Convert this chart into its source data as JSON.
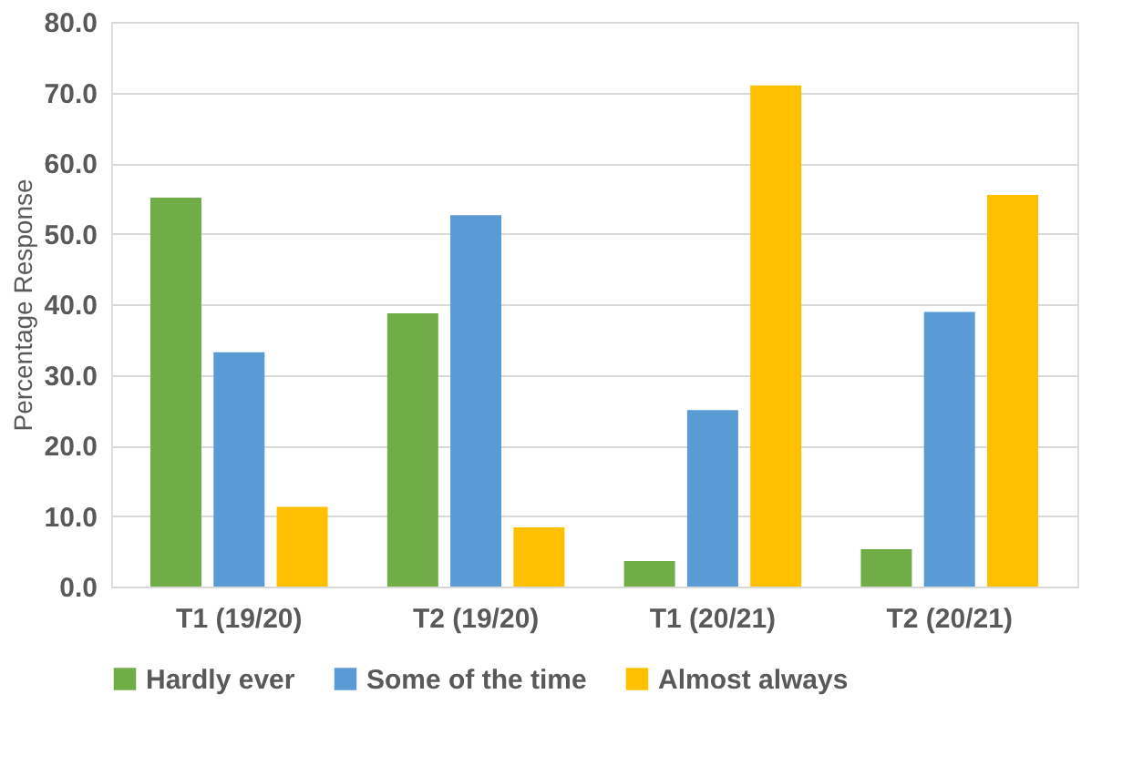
{
  "chart_data": {
    "type": "bar",
    "ylabel": "Percentage Response",
    "categories": [
      "T1 (19/20)",
      "T2 (19/20)",
      "T1 (20/21)",
      "T2 (20/21)"
    ],
    "series": [
      {
        "name": "Hardly ever",
        "color": "#70ad47",
        "values": [
          55.1,
          38.7,
          3.6,
          5.3
        ]
      },
      {
        "name": "Some of the time",
        "color": "#5b9bd5",
        "values": [
          33.2,
          52.6,
          25.0,
          38.9
        ]
      },
      {
        "name": "Almost always",
        "color": "#ffc000",
        "values": [
          11.3,
          8.4,
          71.0,
          55.5
        ]
      }
    ],
    "ylim": [
      0,
      80
    ],
    "yticks": [
      {
        "value": 0,
        "label": "0.0"
      },
      {
        "value": 10,
        "label": "10.0"
      },
      {
        "value": 20,
        "label": "20.0"
      },
      {
        "value": 30,
        "label": "30.0"
      },
      {
        "value": 40,
        "label": "40.0"
      },
      {
        "value": 50,
        "label": "50.0"
      },
      {
        "value": 60,
        "label": "60.0"
      },
      {
        "value": 70,
        "label": "70.0"
      },
      {
        "value": 80,
        "label": "80.0"
      }
    ],
    "grid": "y",
    "legend": "bottom"
  }
}
